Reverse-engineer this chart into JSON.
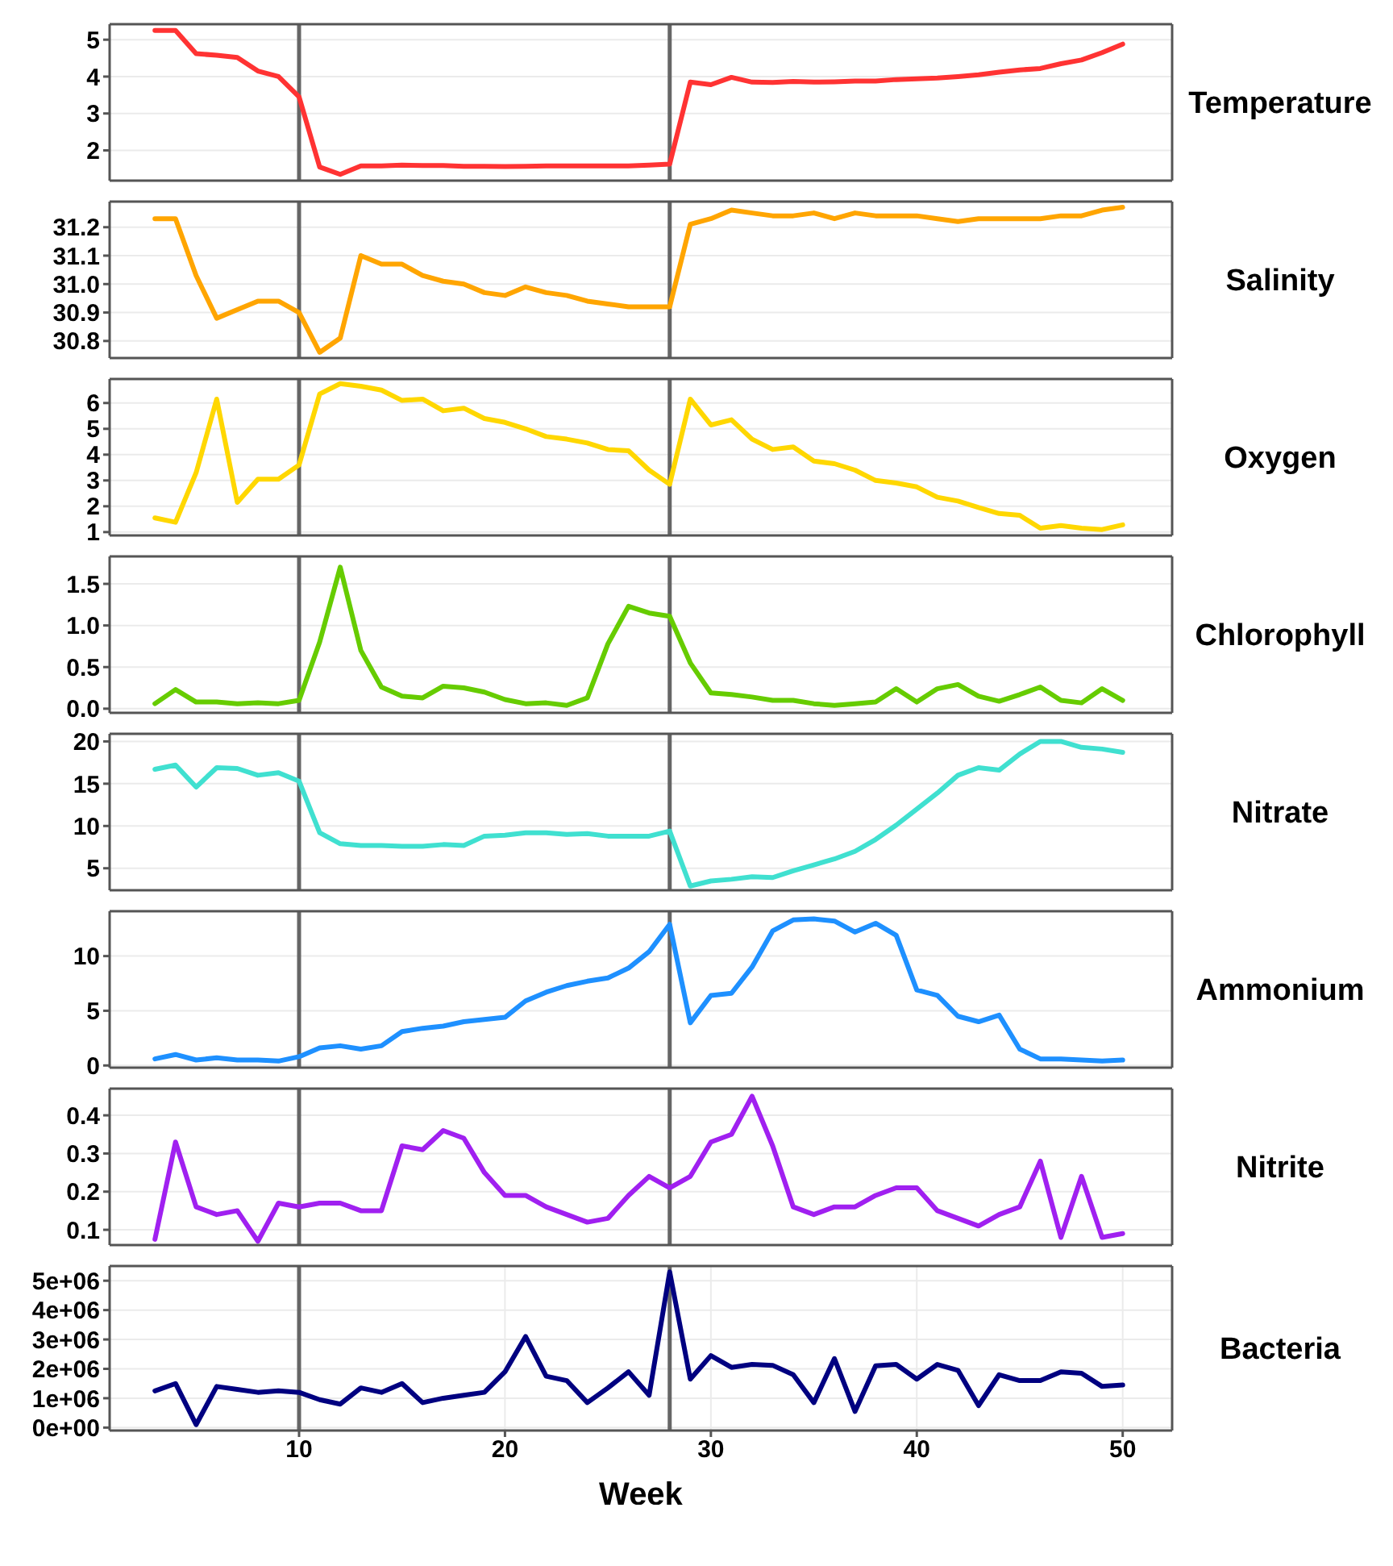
{
  "chart_data": [
    {
      "type": "line",
      "ylabel": "Temperature",
      "x": [
        3,
        4,
        5,
        6,
        7,
        8,
        9,
        10,
        11,
        12,
        13,
        14,
        15,
        16,
        17,
        18,
        19,
        20,
        21,
        22,
        23,
        24,
        25,
        26,
        27,
        28,
        29,
        30,
        31,
        32,
        33,
        34,
        35,
        36,
        37,
        38,
        39,
        40,
        41,
        42,
        43,
        44,
        45,
        46,
        47,
        48,
        49,
        50
      ],
      "xlim": [
        0.8,
        52.4
      ],
      "xticks": [
        10,
        20,
        30,
        40,
        50
      ],
      "ylim": [
        1.18,
        5.42
      ],
      "yticks": [
        2,
        3,
        4,
        5
      ],
      "grid": true,
      "tick_labels": "y",
      "ref_lines": [
        {
          "axis": "x",
          "value": 10,
          "color": "#666666"
        },
        {
          "axis": "x",
          "value": 28,
          "color": "#666666"
        }
      ],
      "series": [
        {
          "color": "#ff3333",
          "values": [
            5.25,
            5.25,
            4.62,
            4.58,
            4.52,
            4.15,
            4.0,
            3.45,
            1.55,
            1.35,
            1.58,
            1.58,
            1.6,
            1.59,
            1.59,
            1.57,
            1.57,
            1.56,
            1.57,
            1.58,
            1.58,
            1.58,
            1.58,
            1.58,
            1.6,
            1.63,
            3.85,
            3.78,
            3.98,
            3.85,
            3.84,
            3.87,
            3.85,
            3.86,
            3.88,
            3.88,
            3.92,
            3.94,
            3.96,
            4.0,
            4.05,
            4.12,
            4.18,
            4.22,
            4.35,
            4.45,
            4.65,
            4.88
          ]
        }
      ]
    },
    {
      "type": "line",
      "ylabel": "Salinity",
      "x": [
        3,
        4,
        5,
        6,
        7,
        8,
        9,
        10,
        11,
        12,
        13,
        14,
        15,
        16,
        17,
        18,
        19,
        20,
        21,
        22,
        23,
        24,
        25,
        26,
        27,
        28,
        29,
        30,
        31,
        32,
        33,
        34,
        35,
        36,
        37,
        38,
        39,
        40,
        41,
        42,
        43,
        44,
        45,
        46,
        47,
        48,
        49,
        50
      ],
      "xlim": [
        0.8,
        52.4
      ],
      "xticks": [
        10,
        20,
        30,
        40,
        50
      ],
      "ylim": [
        30.74,
        31.29
      ],
      "yticks": [
        {
          "value": 30.8,
          "label": "30.8"
        },
        {
          "value": 30.9,
          "label": "30.9"
        },
        {
          "value": 31,
          "label": "31.0"
        },
        {
          "value": 31.1,
          "label": "31.1"
        },
        {
          "value": 31.2,
          "label": "31.2"
        }
      ],
      "grid": true,
      "tick_labels": "y",
      "ref_lines": [
        {
          "axis": "x",
          "value": 10,
          "color": "#666666"
        },
        {
          "axis": "x",
          "value": 28,
          "color": "#666666"
        }
      ],
      "series": [
        {
          "color": "#ffa500",
          "values": [
            31.23,
            31.23,
            31.03,
            30.88,
            30.91,
            30.94,
            30.94,
            30.9,
            30.76,
            30.81,
            31.1,
            31.07,
            31.07,
            31.03,
            31.01,
            31.0,
            30.97,
            30.96,
            30.99,
            30.97,
            30.96,
            30.94,
            30.93,
            30.92,
            30.92,
            30.92,
            31.21,
            31.23,
            31.26,
            31.25,
            31.24,
            31.24,
            31.25,
            31.23,
            31.25,
            31.24,
            31.24,
            31.24,
            31.23,
            31.22,
            31.23,
            31.23,
            31.23,
            31.23,
            31.24,
            31.24,
            31.26,
            31.27
          ]
        }
      ]
    },
    {
      "type": "line",
      "ylabel": "Oxygen",
      "x": [
        3,
        4,
        5,
        6,
        7,
        8,
        9,
        10,
        11,
        12,
        13,
        14,
        15,
        16,
        17,
        18,
        19,
        20,
        21,
        22,
        23,
        24,
        25,
        26,
        27,
        28,
        29,
        30,
        31,
        32,
        33,
        34,
        35,
        36,
        37,
        38,
        39,
        40,
        41,
        42,
        43,
        44,
        45,
        46,
        47,
        48,
        49,
        50
      ],
      "xlim": [
        0.8,
        52.4
      ],
      "xticks": [
        10,
        20,
        30,
        40,
        50
      ],
      "ylim": [
        0.87,
        6.93
      ],
      "yticks": [
        1,
        2,
        3,
        4,
        5,
        6
      ],
      "grid": true,
      "tick_labels": "y",
      "ref_lines": [
        {
          "axis": "x",
          "value": 10,
          "color": "#666666"
        },
        {
          "axis": "x",
          "value": 28,
          "color": "#666666"
        }
      ],
      "series": [
        {
          "color": "#ffd700",
          "values": [
            1.55,
            1.38,
            3.3,
            6.15,
            2.15,
            3.05,
            3.05,
            3.6,
            6.35,
            6.75,
            6.65,
            6.5,
            6.1,
            6.15,
            5.7,
            5.8,
            5.4,
            5.25,
            5.0,
            4.7,
            4.6,
            4.45,
            4.2,
            4.15,
            3.4,
            2.85,
            6.15,
            5.15,
            5.35,
            4.6,
            4.2,
            4.3,
            3.75,
            3.65,
            3.4,
            3.0,
            2.9,
            2.75,
            2.35,
            2.2,
            1.95,
            1.72,
            1.65,
            1.15,
            1.25,
            1.15,
            1.1,
            1.28
          ]
        }
      ]
    },
    {
      "type": "line",
      "ylabel": "Chlorophyll",
      "x": [
        3,
        4,
        5,
        6,
        7,
        8,
        9,
        10,
        11,
        12,
        13,
        14,
        15,
        16,
        17,
        18,
        19,
        20,
        21,
        22,
        23,
        24,
        25,
        26,
        27,
        28,
        29,
        30,
        31,
        32,
        33,
        34,
        35,
        36,
        37,
        38,
        39,
        40,
        41,
        42,
        43,
        44,
        45,
        46,
        47,
        48,
        49,
        50
      ],
      "xlim": [
        0.8,
        52.4
      ],
      "xticks": [
        10,
        20,
        30,
        40,
        50
      ],
      "ylim": [
        -0.05,
        1.83
      ],
      "yticks": [
        {
          "value": 0,
          "label": "0.0"
        },
        {
          "value": 0.5,
          "label": "0.5"
        },
        {
          "value": 1,
          "label": "1.0"
        },
        {
          "value": 1.5,
          "label": "1.5"
        }
      ],
      "grid": true,
      "tick_labels": "y",
      "ref_lines": [
        {
          "axis": "x",
          "value": 10,
          "color": "#666666"
        },
        {
          "axis": "x",
          "value": 28,
          "color": "#666666"
        }
      ],
      "series": [
        {
          "color": "#66cc00",
          "values": [
            0.06,
            0.23,
            0.08,
            0.08,
            0.06,
            0.07,
            0.06,
            0.1,
            0.8,
            1.7,
            0.7,
            0.26,
            0.15,
            0.13,
            0.27,
            0.25,
            0.2,
            0.11,
            0.06,
            0.07,
            0.04,
            0.13,
            0.78,
            1.23,
            1.15,
            1.11,
            0.55,
            0.19,
            0.17,
            0.14,
            0.1,
            0.1,
            0.06,
            0.04,
            0.06,
            0.08,
            0.24,
            0.08,
            0.24,
            0.29,
            0.15,
            0.09,
            0.17,
            0.26,
            0.1,
            0.07,
            0.24,
            0.1
          ]
        }
      ]
    },
    {
      "type": "line",
      "ylabel": "Nitrate",
      "x": [
        3,
        4,
        5,
        6,
        7,
        8,
        9,
        10,
        11,
        12,
        13,
        14,
        15,
        16,
        17,
        18,
        19,
        20,
        21,
        22,
        23,
        24,
        25,
        26,
        27,
        28,
        29,
        30,
        31,
        32,
        33,
        34,
        35,
        36,
        37,
        38,
        39,
        40,
        41,
        42,
        43,
        44,
        45,
        46,
        47,
        48,
        49,
        50
      ],
      "xlim": [
        0.8,
        52.4
      ],
      "xticks": [
        10,
        20,
        30,
        40,
        50
      ],
      "ylim": [
        2.4,
        20.9
      ],
      "yticks": [
        5,
        10,
        15,
        20
      ],
      "grid": true,
      "tick_labels": "y",
      "ref_lines": [
        {
          "axis": "x",
          "value": 10,
          "color": "#666666"
        },
        {
          "axis": "x",
          "value": 28,
          "color": "#666666"
        }
      ],
      "series": [
        {
          "color": "#40e0d0",
          "values": [
            16.7,
            17.2,
            14.6,
            16.9,
            16.8,
            16.0,
            16.3,
            15.3,
            9.2,
            7.9,
            7.7,
            7.7,
            7.6,
            7.6,
            7.8,
            7.7,
            8.8,
            8.9,
            9.2,
            9.2,
            9.0,
            9.1,
            8.8,
            8.8,
            8.8,
            9.4,
            2.9,
            3.5,
            3.7,
            4.0,
            3.9,
            4.7,
            5.4,
            6.1,
            7.0,
            8.4,
            10.1,
            12.0,
            13.9,
            16.0,
            16.9,
            16.6,
            18.5,
            20.0,
            20.0,
            19.3,
            19.1,
            18.7
          ]
        }
      ]
    },
    {
      "type": "line",
      "ylabel": "Ammonium",
      "x": [
        3,
        4,
        5,
        6,
        7,
        8,
        9,
        10,
        11,
        12,
        13,
        14,
        15,
        16,
        17,
        18,
        19,
        20,
        21,
        22,
        23,
        24,
        25,
        26,
        27,
        28,
        29,
        30,
        31,
        32,
        33,
        34,
        35,
        36,
        37,
        38,
        39,
        40,
        41,
        42,
        43,
        44,
        45,
        46,
        47,
        48,
        49,
        50
      ],
      "xlim": [
        0.8,
        52.4
      ],
      "xticks": [
        10,
        20,
        30,
        40,
        50
      ],
      "ylim": [
        -0.2,
        14.1
      ],
      "yticks": [
        0,
        5,
        10
      ],
      "grid": true,
      "tick_labels": "y",
      "ref_lines": [
        {
          "axis": "x",
          "value": 10,
          "color": "#666666"
        },
        {
          "axis": "x",
          "value": 28,
          "color": "#666666"
        }
      ],
      "series": [
        {
          "color": "#1e90ff",
          "values": [
            0.6,
            1.0,
            0.5,
            0.7,
            0.5,
            0.5,
            0.4,
            0.8,
            1.6,
            1.8,
            1.5,
            1.8,
            3.1,
            3.4,
            3.6,
            4.0,
            4.2,
            4.4,
            5.9,
            6.7,
            7.3,
            7.7,
            8.0,
            8.9,
            10.4,
            12.9,
            3.9,
            6.4,
            6.6,
            9.0,
            12.3,
            13.3,
            13.4,
            13.2,
            12.2,
            13.0,
            11.9,
            6.9,
            6.4,
            4.5,
            4.0,
            4.6,
            1.5,
            0.6,
            0.6,
            0.5,
            0.4,
            0.5
          ]
        }
      ]
    },
    {
      "type": "line",
      "ylabel": "Nitrite",
      "x": [
        3,
        4,
        5,
        6,
        7,
        8,
        9,
        10,
        11,
        12,
        13,
        14,
        15,
        16,
        17,
        18,
        19,
        20,
        21,
        22,
        23,
        24,
        25,
        26,
        27,
        28,
        29,
        30,
        31,
        32,
        33,
        34,
        35,
        36,
        37,
        38,
        39,
        40,
        41,
        42,
        43,
        44,
        45,
        46,
        47,
        48,
        49,
        50
      ],
      "xlim": [
        0.8,
        52.4
      ],
      "xticks": [
        10,
        20,
        30,
        40,
        50
      ],
      "ylim": [
        0.06,
        0.47
      ],
      "yticks": [
        0.1,
        0.2,
        0.3,
        0.4
      ],
      "grid": true,
      "tick_labels": "y",
      "ref_lines": [
        {
          "axis": "x",
          "value": 10,
          "color": "#666666"
        },
        {
          "axis": "x",
          "value": 28,
          "color": "#666666"
        }
      ],
      "series": [
        {
          "color": "#a020f0",
          "values": [
            0.075,
            0.33,
            0.16,
            0.14,
            0.15,
            0.07,
            0.17,
            0.16,
            0.17,
            0.17,
            0.15,
            0.15,
            0.32,
            0.31,
            0.36,
            0.34,
            0.25,
            0.19,
            0.19,
            0.16,
            0.14,
            0.12,
            0.13,
            0.19,
            0.24,
            0.21,
            0.24,
            0.33,
            0.35,
            0.45,
            0.32,
            0.16,
            0.14,
            0.16,
            0.16,
            0.19,
            0.21,
            0.21,
            0.15,
            0.13,
            0.11,
            0.14,
            0.16,
            0.28,
            0.08,
            0.24,
            0.08,
            0.09
          ]
        }
      ]
    },
    {
      "type": "line",
      "ylabel": "Bacteria",
      "xlabel": "Week",
      "x": [
        3,
        4,
        5,
        6,
        7,
        8,
        9,
        10,
        11,
        12,
        13,
        14,
        15,
        16,
        17,
        18,
        19,
        20,
        21,
        22,
        23,
        24,
        25,
        26,
        27,
        28,
        29,
        30,
        31,
        32,
        33,
        34,
        35,
        36,
        37,
        38,
        39,
        40,
        41,
        42,
        43,
        44,
        45,
        46,
        47,
        48,
        49,
        50
      ],
      "xlim": [
        0.8,
        52.4
      ],
      "xticks": [
        10,
        20,
        30,
        40,
        50
      ],
      "ylim": [
        -100000,
        5500000
      ],
      "yticks": [
        {
          "value": 0,
          "label": "0e+00"
        },
        {
          "value": 1000000,
          "label": "1e+06"
        },
        {
          "value": 2000000,
          "label": "2e+06"
        },
        {
          "value": 3000000,
          "label": "3e+06"
        },
        {
          "value": 4000000,
          "label": "4e+06"
        },
        {
          "value": 5000000,
          "label": "5e+06"
        }
      ],
      "grid": true,
      "ref_lines": [
        {
          "axis": "x",
          "value": 10,
          "color": "#666666"
        },
        {
          "axis": "x",
          "value": 28,
          "color": "#666666"
        }
      ],
      "series": [
        {
          "color": "#000080",
          "values": [
            1250000,
            1500000,
            100000,
            1400000,
            1300000,
            1200000,
            1250000,
            1200000,
            950000,
            800000,
            1350000,
            1200000,
            1500000,
            850000,
            1000000,
            1100000,
            1200000,
            1900000,
            3100000,
            1750000,
            1600000,
            850000,
            1350000,
            1900000,
            1100000,
            5300000,
            1650000,
            2450000,
            2050000,
            2150000,
            2120000,
            1800000,
            850000,
            2350000,
            550000,
            2100000,
            2150000,
            1650000,
            2150000,
            1950000,
            750000,
            1800000,
            1600000,
            1600000,
            1900000,
            1850000,
            1400000,
            1450000
          ]
        }
      ]
    }
  ]
}
